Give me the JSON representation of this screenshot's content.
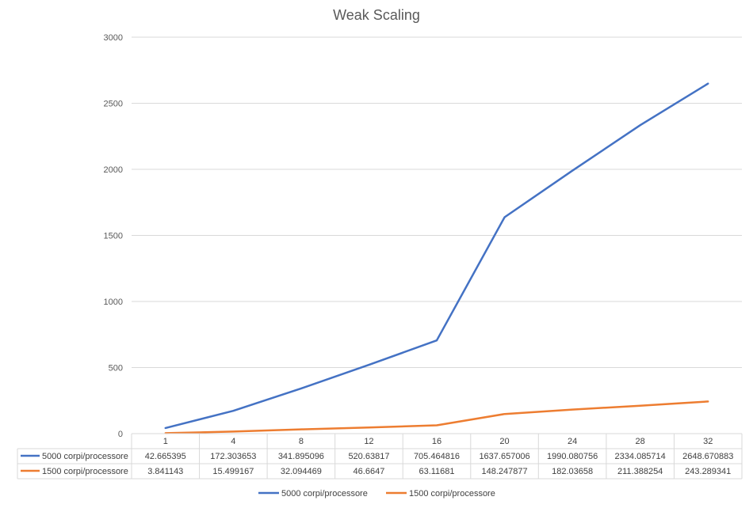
{
  "chart_data": {
    "type": "line",
    "title": "Weak Scaling",
    "categories": [
      "1",
      "4",
      "8",
      "12",
      "16",
      "20",
      "24",
      "28",
      "32"
    ],
    "ylim": [
      0,
      3000
    ],
    "yticks": [
      0,
      500,
      1000,
      1500,
      2000,
      2500,
      3000
    ],
    "grid": true,
    "legend_position": "bottom",
    "data_table": true,
    "series": [
      {
        "name": "5000 corpi/processore",
        "color": "#4472C4",
        "values": [
          42.665395,
          172.303653,
          341.895096,
          520.63817,
          705.464816,
          1637.657006,
          1990.080756,
          2334.085714,
          2648.670883
        ],
        "labels": [
          "42.665395",
          "172.303653",
          "341.895096",
          "520.63817",
          "705.464816",
          "1637.657006",
          "1990.080756",
          "2334.085714",
          "2648.670883"
        ]
      },
      {
        "name": "1500 corpi/processore",
        "color": "#ED7D31",
        "values": [
          3.841143,
          15.499167,
          32.094469,
          46.6647,
          63.11681,
          148.247877,
          182.03658,
          211.388254,
          243.289341
        ],
        "labels": [
          "3.841143",
          "15.499167",
          "32.094469",
          "46.6647",
          "63.11681",
          "148.247877",
          "182.03658",
          "211.388254",
          "243.289341"
        ]
      }
    ]
  }
}
